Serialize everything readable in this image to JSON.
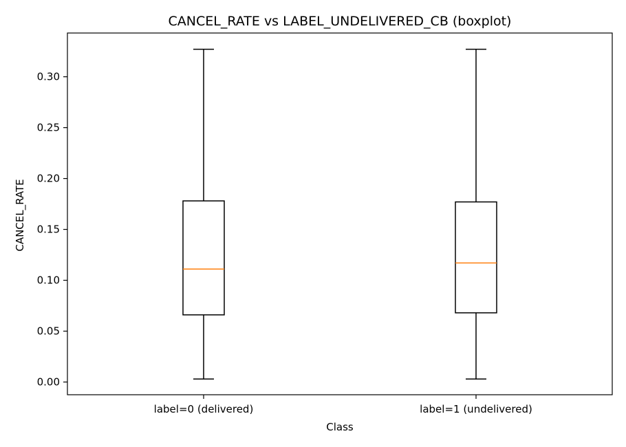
{
  "chart_data": {
    "type": "boxplot",
    "title": "CANCEL_RATE vs LABEL_UNDELIVERED_CB (boxplot)",
    "xlabel": "Class",
    "ylabel": "CANCEL_RATE",
    "categories": [
      "label=0 (delivered)",
      "label=1 (undelivered)"
    ],
    "boxes": [
      {
        "whisker_low": 0.003,
        "q1": 0.066,
        "median": 0.111,
        "q3": 0.178,
        "whisker_high": 0.327
      },
      {
        "whisker_low": 0.003,
        "q1": 0.068,
        "median": 0.117,
        "q3": 0.177,
        "whisker_high": 0.327
      }
    ],
    "ylim": [
      -0.0125,
      0.343
    ],
    "yticks": [
      0.0,
      0.05,
      0.1,
      0.15,
      0.2,
      0.25,
      0.3
    ],
    "ytick_labels": [
      "0.00",
      "0.05",
      "0.10",
      "0.15",
      "0.20",
      "0.25",
      "0.30"
    ],
    "grid": false,
    "colors": {
      "box": "#000000",
      "median": "#ff7f0e",
      "whisker": "#000000"
    }
  }
}
